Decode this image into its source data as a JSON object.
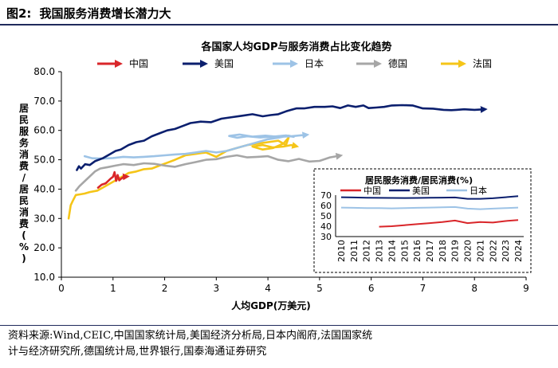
{
  "figure": {
    "label": "图2:",
    "title": "我国服务消费增长潜力大",
    "source_line1": "资料来源:Wind,CEIC,中国国家统计局,美国经济分析局,日本内阁府,法国国家统",
    "source_line2": "计与经济研究所,德国统计局,世界银行,国泰海通证券研究"
  },
  "chart_data": [
    {
      "type": "line",
      "title": "各国家人均GDP与服务消费占比变化趋势",
      "xlabel": "人均GDP(万美元)",
      "ylabel": "居民服务消费/居民消费(%)",
      "xlim": [
        0,
        9
      ],
      "ylim": [
        10,
        80
      ],
      "xticks": [
        0,
        1,
        2,
        3,
        4,
        5,
        6,
        7,
        8,
        9
      ],
      "yticks": [
        "10.0",
        "20.0",
        "30.0",
        "40.0",
        "50.0",
        "60.0",
        "70.0",
        "80.0"
      ],
      "legend": [
        "中国",
        "美国",
        "日本",
        "德国",
        "法国"
      ],
      "legend_position": "top",
      "series": [
        {
          "name": "中国",
          "color": "#d9262a",
          "x": [
            0.71,
            0.78,
            0.86,
            0.95,
            1.0,
            1.03,
            1.06,
            1.09,
            1.12,
            1.16,
            1.21,
            1.27
          ],
          "y": [
            40.5,
            41.5,
            42.0,
            43.5,
            44.2,
            45.8,
            42.8,
            44.8,
            43.0,
            43.6,
            44.2,
            44.3
          ]
        },
        {
          "name": "美国",
          "color": "#0b1f6e",
          "x": [
            0.3,
            0.34,
            0.38,
            0.46,
            0.55,
            0.65,
            0.8,
            0.95,
            1.05,
            1.15,
            1.3,
            1.45,
            1.6,
            1.75,
            1.9,
            2.05,
            2.2,
            2.35,
            2.5,
            2.7,
            2.9,
            3.1,
            3.3,
            3.5,
            3.7,
            3.9,
            4.05,
            4.2,
            4.35,
            4.45,
            4.55,
            4.7,
            4.9,
            5.1,
            5.25,
            5.4,
            5.55,
            5.7,
            5.85,
            5.95,
            6.1,
            6.25,
            6.4,
            6.6,
            6.8,
            7.0,
            7.2,
            7.4,
            7.55,
            7.65,
            7.8,
            8.0,
            8.2
          ],
          "y": [
            46.5,
            47.8,
            47.0,
            48.5,
            48.2,
            49.5,
            50.5,
            52.0,
            53.0,
            53.5,
            55.0,
            56.0,
            56.5,
            58.0,
            59.0,
            60.0,
            60.5,
            61.5,
            62.5,
            63.0,
            62.8,
            64.0,
            64.5,
            65.0,
            65.5,
            64.8,
            65.2,
            65.5,
            66.5,
            67.0,
            67.5,
            67.5,
            68.0,
            68.0,
            68.2,
            67.6,
            68.5,
            68.0,
            68.5,
            67.6,
            67.8,
            68.0,
            68.5,
            68.6,
            68.5,
            67.5,
            67.4,
            67.0,
            66.9,
            67.0,
            67.2,
            67.0,
            67.2
          ]
        },
        {
          "name": "日本",
          "color": "#9dc3e6",
          "x": [
            0.45,
            0.6,
            0.8,
            1.0,
            1.2,
            1.4,
            1.6,
            1.8,
            2.0,
            2.2,
            2.4,
            2.6,
            2.8,
            3.0,
            3.2,
            3.4,
            3.6,
            3.8,
            4.0,
            4.2,
            4.4,
            4.5,
            4.35,
            4.1,
            3.85,
            3.6,
            3.4,
            3.25,
            3.45,
            3.7,
            3.95,
            4.2,
            4.45,
            4.75
          ],
          "y": [
            51.2,
            50.5,
            50.4,
            50.6,
            51.0,
            50.8,
            51.0,
            51.2,
            51.5,
            51.8,
            52.0,
            52.5,
            53.0,
            52.5,
            53.0,
            54.0,
            55.0,
            56.0,
            57.0,
            57.5,
            58.2,
            57.8,
            58.3,
            57.9,
            57.6,
            58.0,
            57.5,
            58.1,
            58.6,
            57.9,
            58.2,
            57.8,
            58.0,
            58.5
          ]
        },
        {
          "name": "德国",
          "color": "#a6a6a6",
          "x": [
            0.28,
            0.35,
            0.5,
            0.65,
            0.75,
            0.9,
            1.05,
            1.2,
            1.4,
            1.6,
            1.8,
            2.0,
            2.2,
            2.4,
            2.6,
            2.8,
            3.0,
            3.2,
            3.4,
            3.6,
            3.8,
            4.0,
            4.2,
            4.4,
            4.6,
            4.8,
            5.0,
            5.2,
            5.4
          ],
          "y": [
            39.5,
            41.0,
            43.5,
            46.0,
            47.0,
            47.5,
            48.0,
            48.5,
            48.2,
            48.8,
            48.6,
            48.0,
            47.6,
            48.5,
            49.2,
            50.0,
            50.2,
            51.0,
            51.5,
            50.8,
            51.0,
            51.2,
            50.0,
            49.5,
            50.3,
            49.4,
            49.6,
            50.8,
            51.4
          ]
        },
        {
          "name": "法国",
          "color": "#f5c518",
          "x": [
            0.14,
            0.18,
            0.22,
            0.28,
            0.35,
            0.45,
            0.55,
            0.7,
            0.85,
            1.0,
            1.15,
            1.3,
            1.45,
            1.6,
            1.75,
            1.9,
            2.05,
            2.2,
            2.4,
            2.6,
            2.8,
            3.0,
            3.2,
            3.4,
            3.6,
            3.8,
            4.0,
            4.2,
            4.35,
            4.4,
            4.3,
            4.1,
            3.9,
            3.7,
            3.9,
            4.1,
            4.3,
            4.45,
            4.55
          ],
          "y": [
            30.0,
            34.5,
            36.0,
            38.0,
            38.2,
            38.5,
            39.0,
            39.5,
            41.0,
            42.5,
            44.0,
            45.5,
            46.0,
            46.8,
            47.0,
            48.0,
            49.0,
            50.0,
            51.5,
            52.0,
            52.5,
            51.0,
            53.0,
            54.0,
            55.0,
            55.5,
            56.0,
            56.5,
            55.0,
            57.5,
            55.5,
            54.0,
            53.5,
            54.5,
            55.0,
            54.2,
            54.5,
            55.0,
            54.6
          ]
        }
      ]
    },
    {
      "type": "line",
      "title": "居民服务消费/居民消费(%)",
      "categories": [
        "2010",
        "2011",
        "2012",
        "2013",
        "2014",
        "2015",
        "2016",
        "2017",
        "2018",
        "2019",
        "2020",
        "2021",
        "2022",
        "2023",
        "2024"
      ],
      "ylim": [
        30,
        70
      ],
      "yticks": [
        "30",
        "40",
        "50",
        "60",
        "70"
      ],
      "legend": [
        "中国",
        "美国",
        "日本"
      ],
      "legend_position": "top-left",
      "series": [
        {
          "name": "中国",
          "color": "#d9262a",
          "values": [
            null,
            null,
            null,
            39.5,
            40.0,
            41.0,
            42.0,
            43.0,
            44.0,
            45.5,
            43.0,
            44.0,
            43.5,
            45.0,
            46.0
          ]
        },
        {
          "name": "美国",
          "color": "#0b1f6e",
          "values": [
            68.0,
            67.8,
            67.5,
            67.4,
            67.3,
            67.2,
            67.3,
            67.5,
            67.6,
            67.8,
            66.5,
            66.5,
            67.0,
            68.0,
            69.0
          ]
        },
        {
          "name": "日本",
          "color": "#9dc3e6",
          "values": [
            58.0,
            57.8,
            57.5,
            57.5,
            57.2,
            57.5,
            57.8,
            58.0,
            58.2,
            58.5,
            57.0,
            56.5,
            57.0,
            57.5,
            58.0
          ]
        }
      ]
    }
  ]
}
